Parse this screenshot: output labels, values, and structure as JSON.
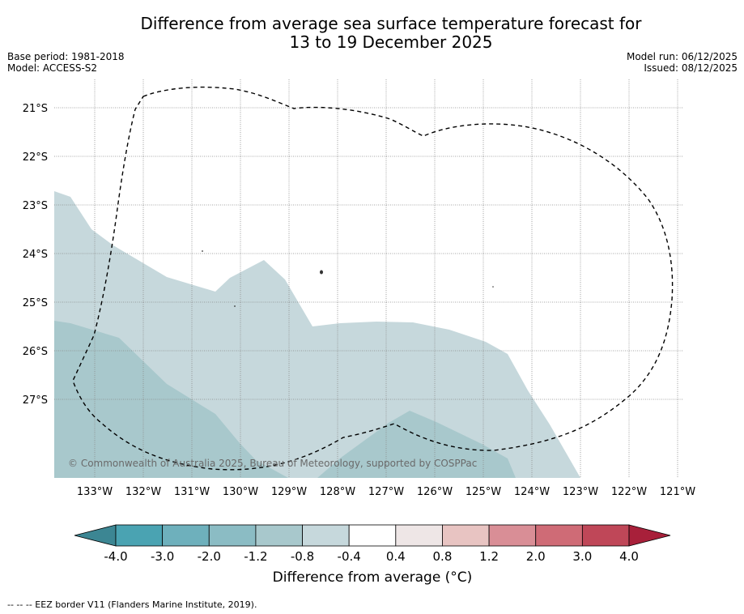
{
  "title_line1": "Difference from average sea surface temperature forecast for",
  "title_line2": "13 to 19 December 2025",
  "base_period": "Base period: 1981-2018",
  "model": "Model: ACCESS-S2",
  "model_run": "Model run: 06/12/2025",
  "issued": "Issued: 08/12/2025",
  "lat_labels": [
    "21°S",
    "22°S",
    "23°S",
    "24°S",
    "25°S",
    "26°S",
    "27°S"
  ],
  "lon_labels": [
    "133°W",
    "132°W",
    "131°W",
    "130°W",
    "129°W",
    "128°W",
    "127°W",
    "126°W",
    "125°W",
    "124°W",
    "123°W",
    "122°W",
    "121°W"
  ],
  "copyright": "© Commonwealth of Australia 2025, Bureau of Meteorology, supported by COSPPac",
  "colorbar": {
    "title": "Difference from average (°C)",
    "labels": [
      "-4.0",
      "-3.0",
      "-2.0",
      "-1.2",
      "-0.8",
      "-0.4",
      "0.4",
      "0.8",
      "1.2",
      "2.0",
      "3.0",
      "4.0"
    ],
    "colors": [
      "#3c8693",
      "#4aa3b2",
      "#6eb0bc",
      "#8bbcc4",
      "#a8c8cc",
      "#c6d8dc",
      "#ffffff",
      "#eee6e6",
      "#e8c4c2",
      "#d98e96",
      "#cf6b76",
      "#bf4758",
      "#a8203a"
    ]
  },
  "anomaly_classes": {
    "light": "#c6d8dc",
    "medium": "#a8c8cc"
  },
  "footnote": "-- -- -- EEZ border V11 (Flanders Marine Institute, 2019)."
}
